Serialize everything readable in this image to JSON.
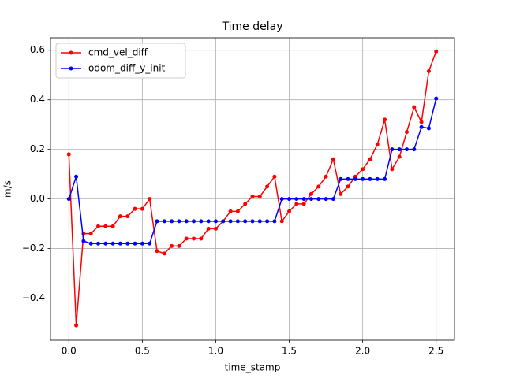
{
  "chart_data": {
    "type": "line",
    "title": "Time delay",
    "x_label": "time_stamp",
    "y_label": "m/s",
    "x": [
      0,
      0.05,
      0.1,
      0.15,
      0.2,
      0.25,
      0.3,
      0.35,
      0.4,
      0.45,
      0.5,
      0.55,
      0.6,
      0.65,
      0.7,
      0.75,
      0.8,
      0.85,
      0.9,
      0.95,
      1.0,
      1.05,
      1.1,
      1.15,
      1.2,
      1.25,
      1.3,
      1.35,
      1.4,
      1.45,
      1.5,
      1.55,
      1.6,
      1.65,
      1.7,
      1.75,
      1.8,
      1.85,
      1.9,
      1.95,
      2.0,
      2.05,
      2.1,
      2.15,
      2.2,
      2.25,
      2.3,
      2.35,
      2.4,
      2.45,
      2.5
    ],
    "series": [
      {
        "name": "cmd_vel_diff",
        "color": "#ff0000",
        "values": [
          0.18,
          -0.51,
          -0.14,
          -0.14,
          -0.11,
          -0.11,
          -0.11,
          -0.07,
          -0.07,
          -0.04,
          -0.04,
          0.0,
          -0.21,
          -0.22,
          -0.19,
          -0.19,
          -0.16,
          -0.16,
          -0.16,
          -0.12,
          -0.12,
          -0.09,
          -0.05,
          -0.05,
          -0.02,
          0.01,
          0.01,
          0.05,
          0.09,
          -0.09,
          -0.05,
          -0.02,
          -0.02,
          0.02,
          0.05,
          0.09,
          0.16,
          0.02,
          0.05,
          0.09,
          0.12,
          0.16,
          0.22,
          0.32,
          0.12,
          0.17,
          0.27,
          0.37,
          0.31,
          0.515,
          0.595
        ]
      },
      {
        "name": "odom_diff_y_init",
        "color": "#0000ff",
        "values": [
          0.0,
          0.09,
          -0.17,
          -0.18,
          -0.18,
          -0.18,
          -0.18,
          -0.18,
          -0.18,
          -0.18,
          -0.18,
          -0.18,
          -0.09,
          -0.09,
          -0.09,
          -0.09,
          -0.09,
          -0.09,
          -0.09,
          -0.09,
          -0.09,
          -0.09,
          -0.09,
          -0.09,
          -0.09,
          -0.09,
          -0.09,
          -0.09,
          -0.09,
          0.0,
          0.0,
          0.0,
          0.0,
          0.0,
          0.0,
          0.0,
          0.0,
          0.08,
          0.08,
          0.08,
          0.08,
          0.08,
          0.08,
          0.08,
          0.2,
          0.2,
          0.2,
          0.2,
          0.29,
          0.285,
          0.405
        ]
      }
    ],
    "xlim": [
      -0.125,
      2.625
    ],
    "ylim": [
      -0.57,
      0.65
    ],
    "xticks": [
      {
        "value": 0,
        "label": "0.0"
      },
      0.5,
      {
        "value": 1,
        "label": "1.0"
      },
      1.5,
      {
        "value": 2,
        "label": "2.0"
      },
      2.5
    ],
    "yticks": [
      {
        "value": -0.4,
        "label": "−0.4"
      },
      {
        "value": -0.2,
        "label": "−0.2"
      },
      {
        "value": 0,
        "label": "0.0"
      },
      0.2,
      0.4,
      0.6
    ],
    "grid": true,
    "legend": "upper-left",
    "marker": "circle"
  }
}
